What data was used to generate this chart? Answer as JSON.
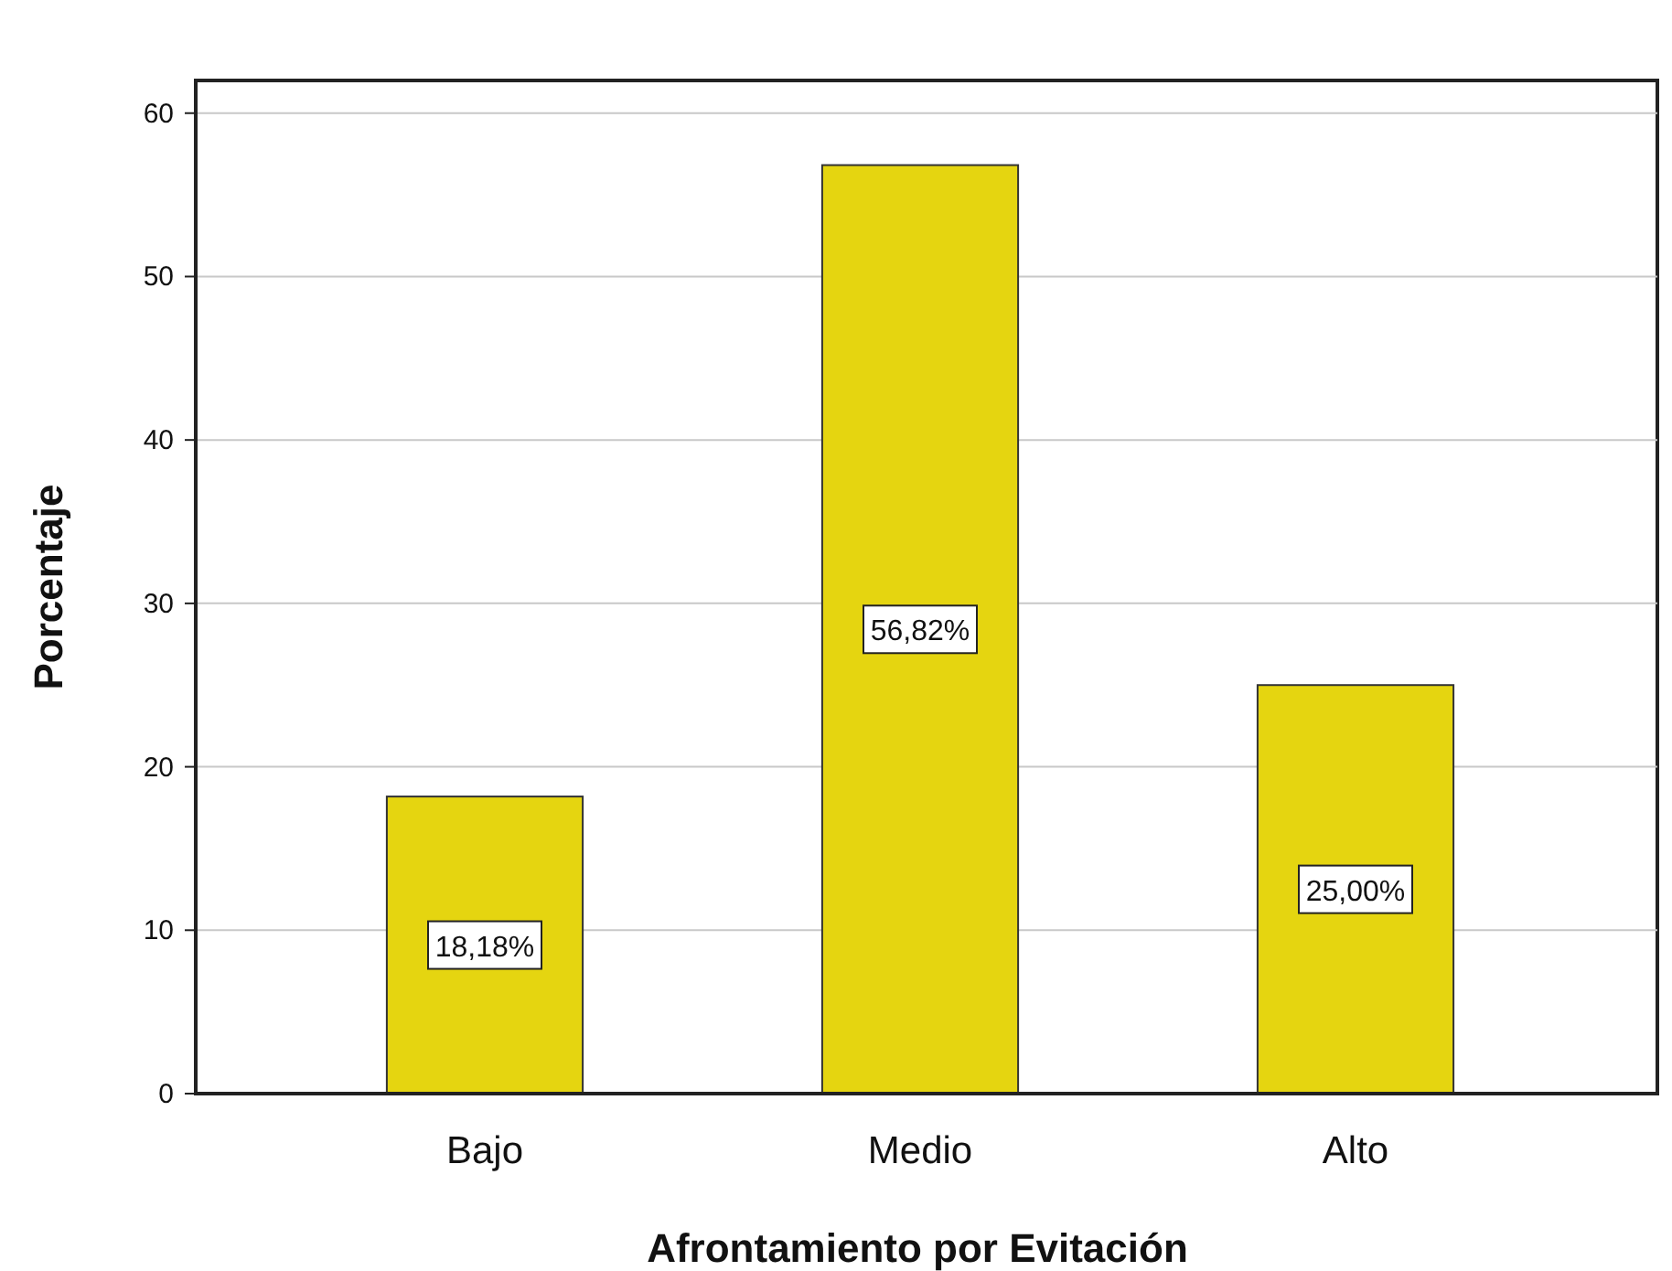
{
  "chart_data": {
    "type": "bar",
    "xlabel": "Afrontamiento por Evitación",
    "ylabel": "Porcentaje",
    "categories": [
      "Bajo",
      "Medio",
      "Alto"
    ],
    "values": [
      18.18,
      56.82,
      25.0
    ],
    "value_labels": [
      "18,18%",
      "56,82%",
      "25,00%"
    ],
    "color": "#e5d510",
    "ylim": [
      0,
      62
    ],
    "yticks": [
      0,
      10,
      20,
      30,
      40,
      50,
      60
    ],
    "grid": "y"
  }
}
